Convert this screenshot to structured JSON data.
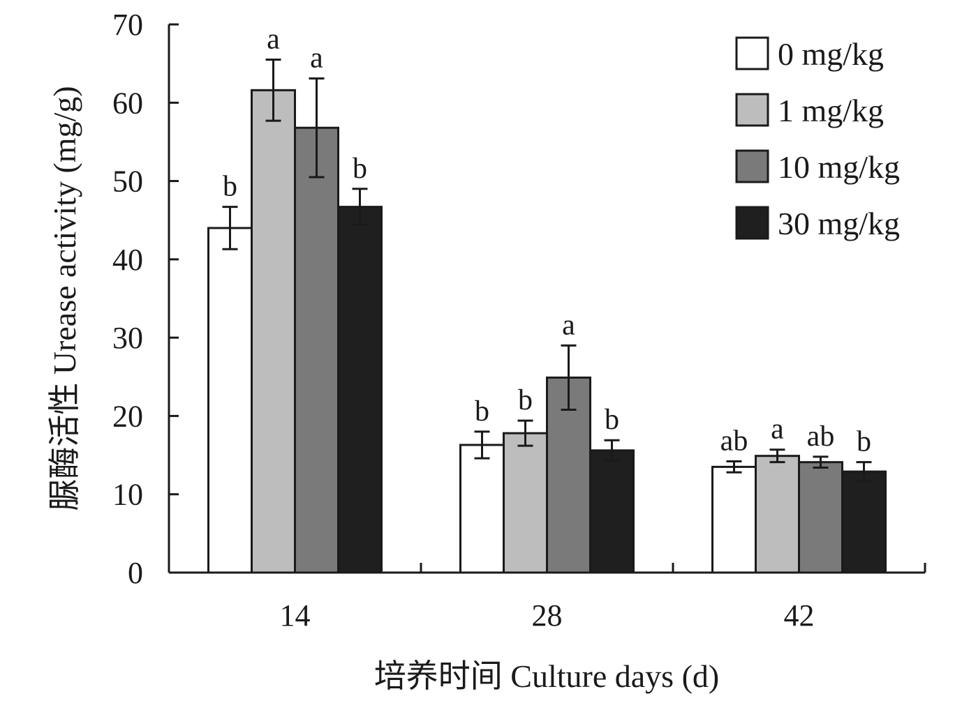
{
  "chart_data": {
    "type": "bar",
    "xlabel": "培养时间 Culture days (d)",
    "ylabel": "脲酶活性 Urease activity (mg/g)",
    "categories": [
      "14",
      "28",
      "42"
    ],
    "ylim": [
      0,
      70
    ],
    "yticks": [
      "0",
      "10",
      "20",
      "30",
      "40",
      "50",
      "60",
      "70"
    ],
    "legend_position": "top-right",
    "grid": false,
    "series": [
      {
        "name": "0 mg/kg",
        "color": "#ffffff",
        "values": [
          44.0,
          16.3,
          13.5
        ],
        "errors": [
          2.7,
          1.7,
          0.7
        ],
        "letters": [
          "b",
          "b",
          "ab"
        ]
      },
      {
        "name": "1 mg/kg",
        "color": "#bdbdbd",
        "values": [
          61.6,
          17.8,
          14.9
        ],
        "errors": [
          3.9,
          1.6,
          0.8
        ],
        "letters": [
          "a",
          "b",
          "a"
        ]
      },
      {
        "name": "10 mg/kg",
        "color": "#7a7a7a",
        "values": [
          56.8,
          24.9,
          14.1
        ],
        "errors": [
          6.3,
          4.1,
          0.7
        ],
        "letters": [
          "a",
          "a",
          "ab"
        ]
      },
      {
        "name": "30 mg/kg",
        "color": "#1f1f1f",
        "values": [
          46.7,
          15.6,
          12.9
        ],
        "errors": [
          2.3,
          1.3,
          1.2
        ],
        "letters": [
          "b",
          "b",
          "b"
        ]
      }
    ]
  }
}
